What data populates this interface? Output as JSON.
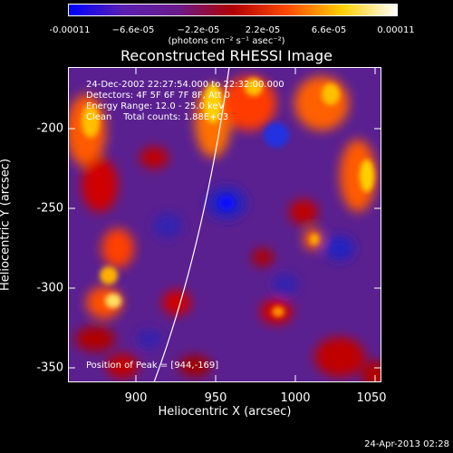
{
  "colorbar": {
    "tick_labels": [
      "-0.00011",
      "−6.6e-05",
      "−2.2e-05",
      "2.2e-05",
      "6.6e-05",
      "0.00011"
    ],
    "units": "(photons cm⁻² s⁻¹ asec⁻²)",
    "colors": [
      "#0000ff",
      "#5a1fb0",
      "#6a1a8a",
      "#b00000",
      "#ff4a00",
      "#ffd000",
      "#ffffff"
    ]
  },
  "title": "Reconstructed RHESSI Image",
  "info": {
    "line1": "24-Dec-2002 22:27:54.000 to 22:32:00.000",
    "line2": "Detectors: 4F 5F 6F 7F 8F, Att 0",
    "line3": "Energy Range: 12.0 - 25.0 keV",
    "line4": "Clean    Total counts: 1.88E+03",
    "peak": "Position of Peak = [944,-169]"
  },
  "axes": {
    "xlabel": "Heliocentric X (arcsec)",
    "ylabel": "Heliocentric Y (arcsec)",
    "xticks": [
      "900",
      "950",
      "1000",
      "1050"
    ],
    "yticks": [
      "-200",
      "-250",
      "-300",
      "-350"
    ]
  },
  "timestamp": "24-Apr-2013 02:28"
}
